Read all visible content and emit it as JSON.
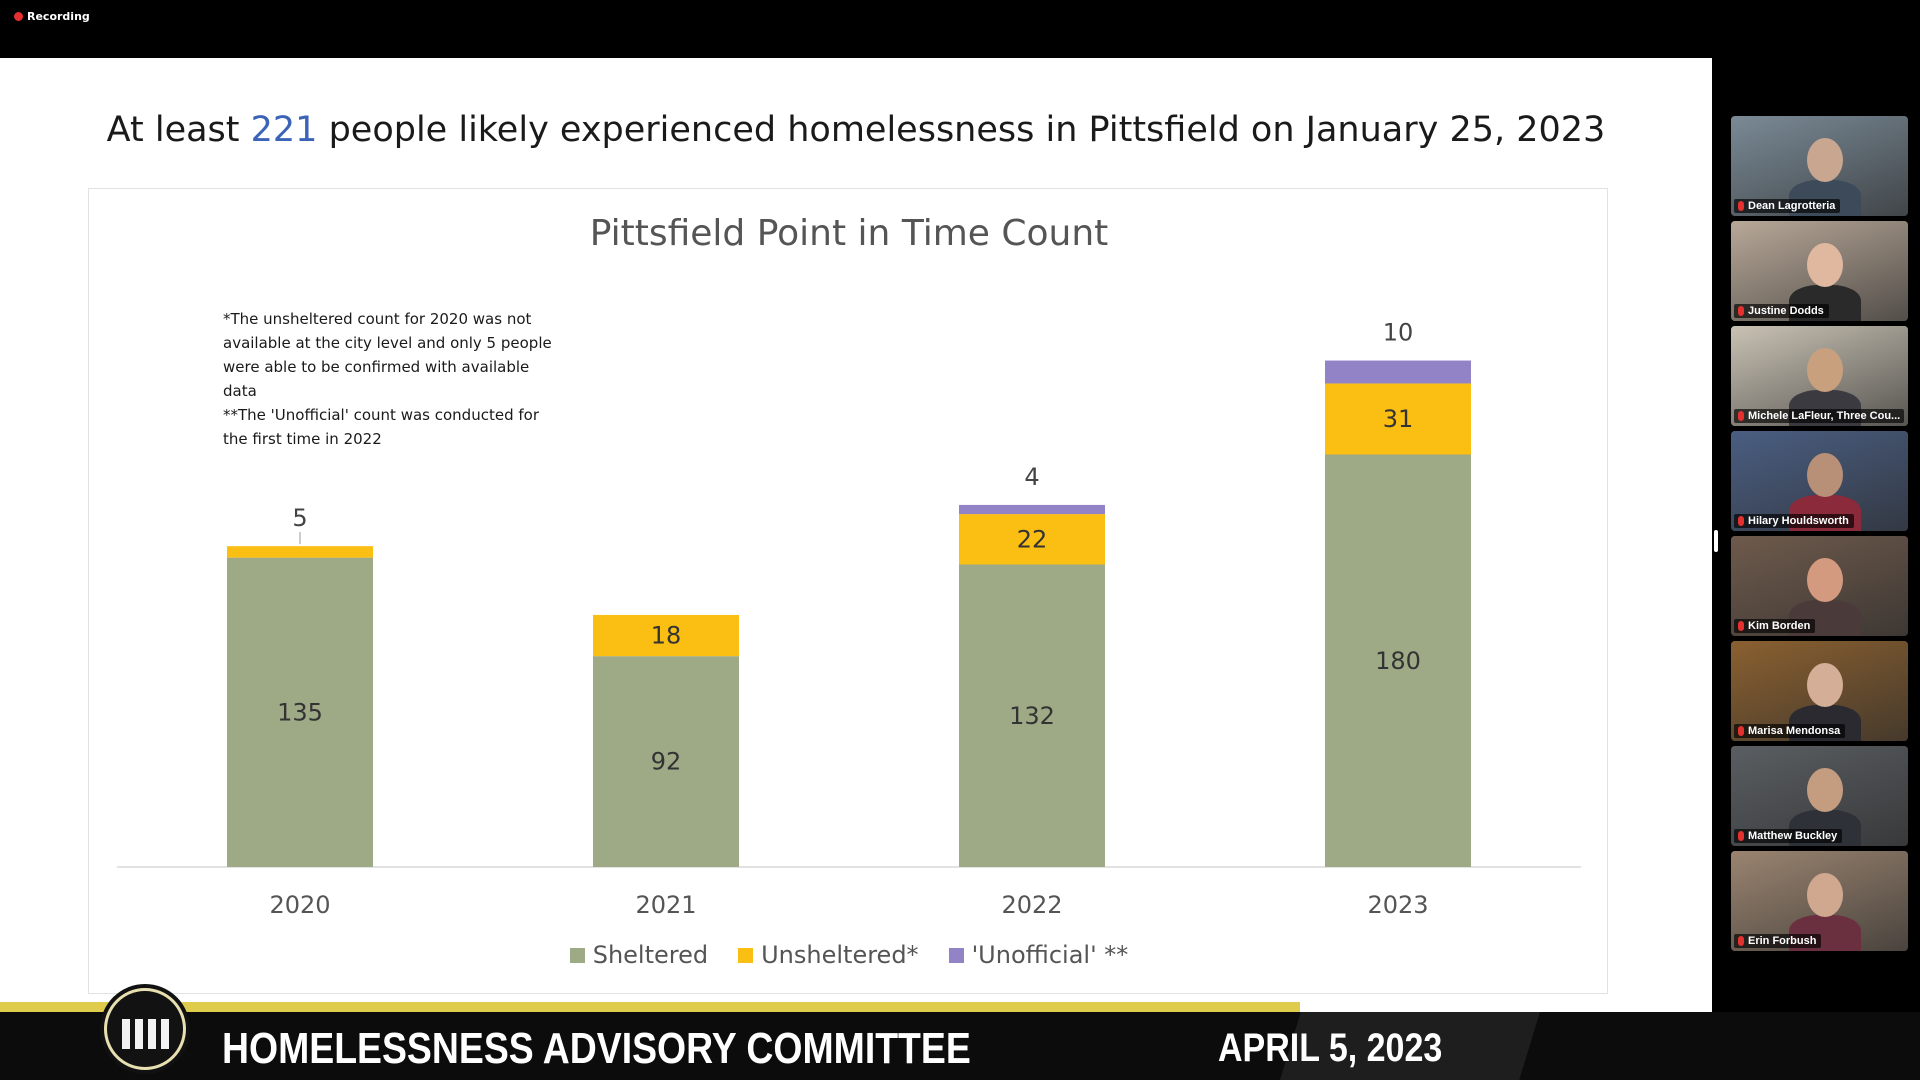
{
  "recording": {
    "label": "Recording"
  },
  "slide": {
    "headline_prefix": "At least ",
    "headline_number": "221",
    "headline_suffix": " people likely experienced homelessness in Pittsfield on January 25, 2023",
    "footnote_line1": "*The unsheltered count for 2020 was not available at the city level and only 5 people were able to be confirmed with available data",
    "footnote_line2": "**The 'Unofficial' count was conducted for the first time in 2022"
  },
  "chart_data": {
    "type": "bar",
    "stacked": true,
    "title": "Pittsfield Point in Time Count",
    "categories": [
      "2020",
      "2021",
      "2022",
      "2023"
    ],
    "series": [
      {
        "name": "Sheltered",
        "color": "#9eaa86",
        "values": [
          135,
          92,
          132,
          180
        ]
      },
      {
        "name": "Unsheltered*",
        "color": "#fbbe12",
        "values": [
          5,
          18,
          22,
          31
        ]
      },
      {
        "name": "'Unofficial' **",
        "color": "#9283c6",
        "values": [
          0,
          0,
          4,
          10
        ]
      }
    ],
    "data_labels": [
      [
        "135",
        "92",
        "132",
        "180"
      ],
      [
        "5",
        "18",
        "22",
        "31"
      ],
      [
        "",
        "",
        "4",
        "10"
      ]
    ],
    "ylim": [
      0,
      240
    ],
    "legend": "bottom",
    "grid": false
  },
  "participants": [
    {
      "name": "Dean Lagrotteria",
      "bg": "#7a8a96",
      "skin": "#c8a690",
      "shirt": "#3c4a5a"
    },
    {
      "name": "Justine Dodds",
      "bg": "#b8a898",
      "skin": "#e0b8a0",
      "shirt": "#2a2a2a"
    },
    {
      "name": "Michele LaFleur, Three Cou...",
      "bg": "#c9c2b4",
      "skin": "#c9a07e",
      "shirt": "#3a3a40",
      "active": true
    },
    {
      "name": "Hilary Houldsworth",
      "bg": "#4a5e82",
      "skin": "#b89078",
      "shirt": "#8a2a3a"
    },
    {
      "name": "Kim Borden",
      "bg": "#6e5a4c",
      "skin": "#d49a80",
      "shirt": "#4a3a3a"
    },
    {
      "name": "Marisa Mendonsa",
      "bg": "#8a6030",
      "skin": "#d4ae96",
      "shirt": "#2a2a30"
    },
    {
      "name": "Matthew Buckley",
      "bg": "#5a5e62",
      "skin": "#c49c80",
      "shirt": "#2e3238"
    },
    {
      "name": "Erin Forbush",
      "bg": "#9a8470",
      "skin": "#d0a890",
      "shirt": "#6a3040"
    }
  ],
  "banner": {
    "title": "HOMELESSNESS ADVISORY COMMITTEE",
    "date": "APRIL 5, 2023"
  }
}
